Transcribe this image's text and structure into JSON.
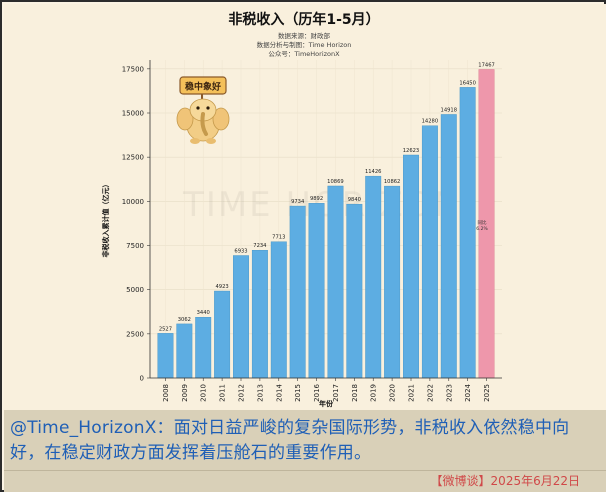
{
  "chart_data": {
    "type": "bar",
    "title": "非税收入（历年1-5月）",
    "subtitle_lines": [
      "数据来源：财政部",
      "数据分析与制图：Time Horizon",
      "公众号：TimeHorizonX"
    ],
    "xlabel": "年份",
    "ylabel": "非税收入累计值（亿元）",
    "ylim": [
      0,
      18000
    ],
    "yticks": [
      0,
      2500,
      5000,
      7500,
      10000,
      12500,
      15000,
      17500
    ],
    "categories": [
      "2008",
      "2009",
      "2010",
      "2011",
      "2012",
      "2013",
      "2014",
      "2015",
      "2016",
      "2017",
      "2018",
      "2019",
      "2020",
      "2021",
      "2022",
      "2023",
      "2024",
      "2025"
    ],
    "values": [
      2527,
      3062,
      3440,
      4923,
      6933,
      7234,
      7713,
      9734,
      9892,
      10869,
      9840,
      11426,
      10862,
      12623,
      14280,
      14918,
      16450,
      17467
    ],
    "highlight_index": 17,
    "colors": {
      "bar": "#5dade2",
      "highlight": "#ee97ab",
      "bar_edge": "#3d8fc4"
    },
    "annotation": {
      "text_line1": "同比",
      "text_line2": "6.2%"
    },
    "badge_text": "稳中象好",
    "watermark": "TIME HORIZON",
    "grid": true
  },
  "caption": {
    "text": "@Time_HorizonX：面对日益严峻的复杂国际形势，非税收入依然稳中向好，在稳定财政方面发挥着压舱石的重要作用。",
    "date": "【微博谈】2025年6月22日"
  }
}
